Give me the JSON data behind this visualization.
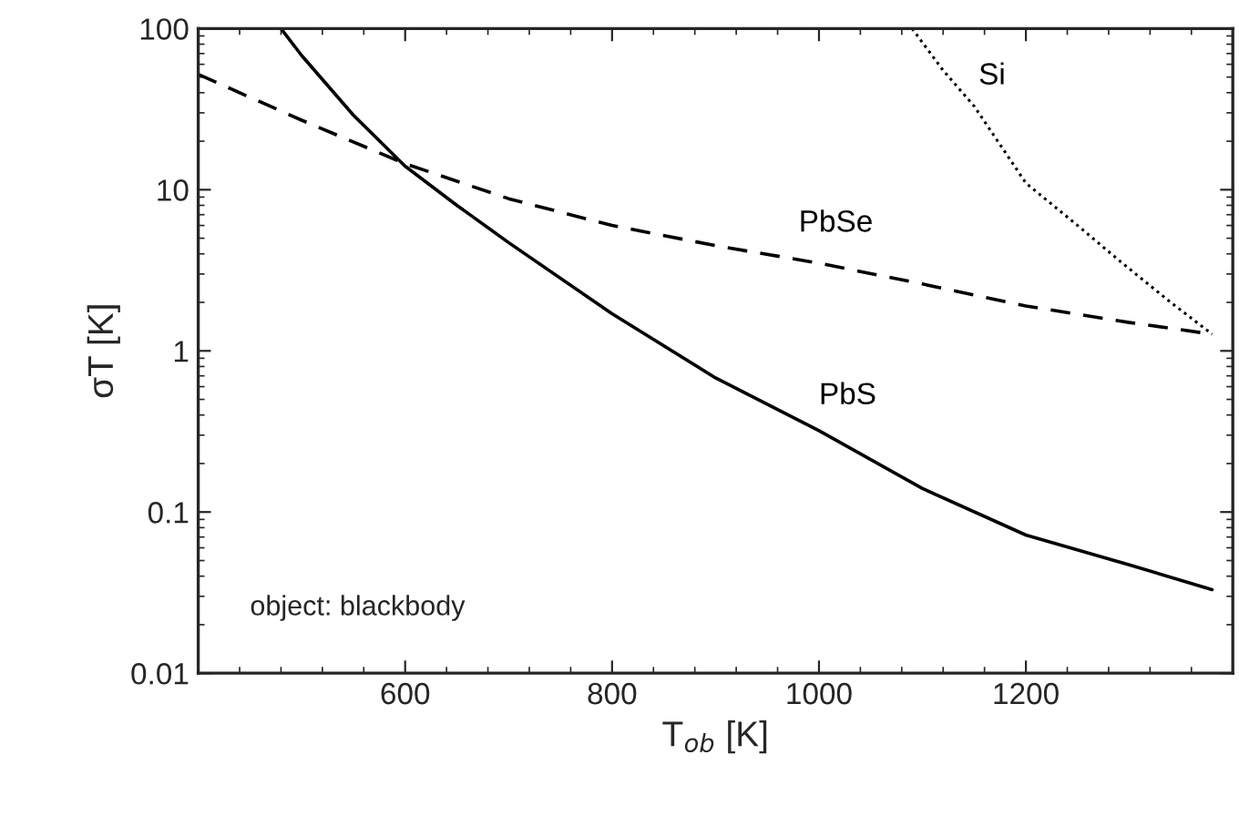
{
  "chart_data": {
    "type": "line",
    "xlabel": "T$_{ob}$ [K]",
    "ylabel": "σT [K]",
    "log": "y",
    "xlim": [
      400,
      1400
    ],
    "xticks": [
      600,
      800,
      1000,
      1200
    ],
    "ylim": [
      0.01,
      100
    ],
    "yticks": [
      0.01,
      0.1,
      1,
      10,
      100
    ],
    "grid": false,
    "annotations": [
      "object: blackbody"
    ],
    "series": [
      {
        "name": "Si",
        "color": "#000000",
        "line_style": "dotted",
        "x": [
          1090,
          1120,
          1150,
          1200,
          1250,
          1291,
          1340,
          1380
        ],
        "values": [
          100,
          55,
          33,
          11,
          6,
          3.6,
          2,
          1.27
        ]
      },
      {
        "name": "PbSe",
        "color": "#000000",
        "line_style": "dashed",
        "x": [
          400,
          500,
          600,
          700,
          800,
          900,
          1000,
          1100,
          1200,
          1300,
          1380
        ],
        "values": [
          52,
          27,
          14.5,
          8.8,
          6,
          4.5,
          3.5,
          2.6,
          1.9,
          1.5,
          1.27
        ]
      },
      {
        "name": "PbS",
        "color": "#000000",
        "line_style": "solid",
        "x": [
          480,
          500,
          550,
          600,
          650,
          700,
          800,
          900,
          1000,
          1100,
          1200,
          1300,
          1380
        ],
        "values": [
          100,
          68,
          29,
          14,
          8,
          4.7,
          1.7,
          0.68,
          0.32,
          0.14,
          0.072,
          0.047,
          0.033
        ]
      }
    ]
  }
}
